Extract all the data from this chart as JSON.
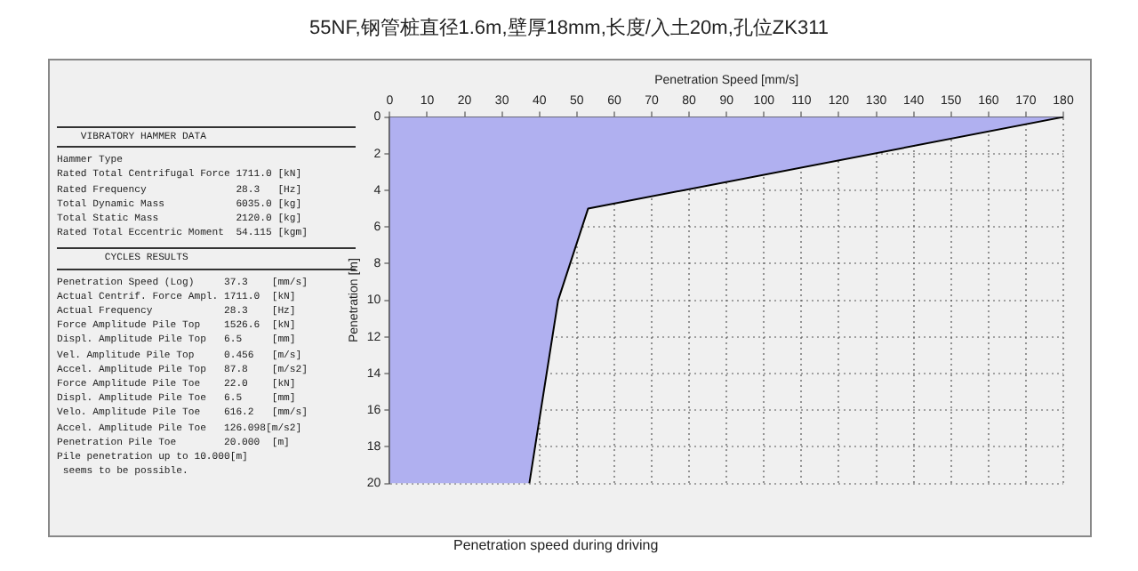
{
  "chart_data": {
    "type": "area",
    "orientation": "horizontal",
    "title": "55NF,钢管桩直径1.6m,壁厚18mm,长度/入土20m,孔位ZK311",
    "xlabel": "Penetration Speed [mm/s]",
    "ylabel": "Penetration [m]",
    "x": [
      0,
      5,
      10,
      20
    ],
    "series": [
      {
        "color": "#b0b0f0",
        "values": [
          180,
          53,
          45,
          37.3
        ]
      }
    ],
    "xlim": [
      0,
      180
    ],
    "xticks": [
      0,
      10,
      20,
      30,
      40,
      50,
      60,
      70,
      80,
      90,
      100,
      110,
      120,
      130,
      140,
      150,
      160,
      170,
      180
    ],
    "ylim": [
      20,
      0
    ],
    "yticks": [
      0,
      2,
      4,
      6,
      8,
      10,
      12,
      14,
      16,
      18,
      20
    ],
    "grid": true,
    "legend": false,
    "annotations": [
      "    VIBRATORY HAMMER DATA",
      "Hammer Type",
      "Rated Total Centrifugal Force 1711.0 [kN]",
      "Rated Frequency               28.3   [Hz]",
      "Total Dynamic Mass            6035.0 [kg]",
      "Total Static Mass             2120.0 [kg]",
      "Rated Total Eccentric Moment  54.115 [kgm]",
      "        CYCLES RESULTS",
      "Penetration Speed (Log)     37.3    [mm/s]",
      "Actual Centrif. Force Ampl. 1711.0  [kN]",
      "Actual Frequency            28.3    [Hz]",
      "Force Amplitude Pile Top    1526.6  [kN]",
      "Displ. Amplitude Pile Top   6.5     [mm]",
      "Vel. Amplitude Pile Top     0.456   [m/s]",
      "Accel. Amplitude Pile Top   87.8    [m/s2]",
      "Force Amplitude Pile Toe    22.0    [kN]",
      "Displ. Amplitude Pile Toe   6.5     [mm]",
      "Velo. Amplitude Pile Toe    616.2   [mm/s]",
      "Accel. Amplitude Pile Toe   126.098[m/s2]",
      "Penetration Pile Toe        20.000  [m]",
      "Pile penetration up to 10.000[m]",
      " seems to be possible.",
      "Penetration speed during driving"
    ]
  }
}
